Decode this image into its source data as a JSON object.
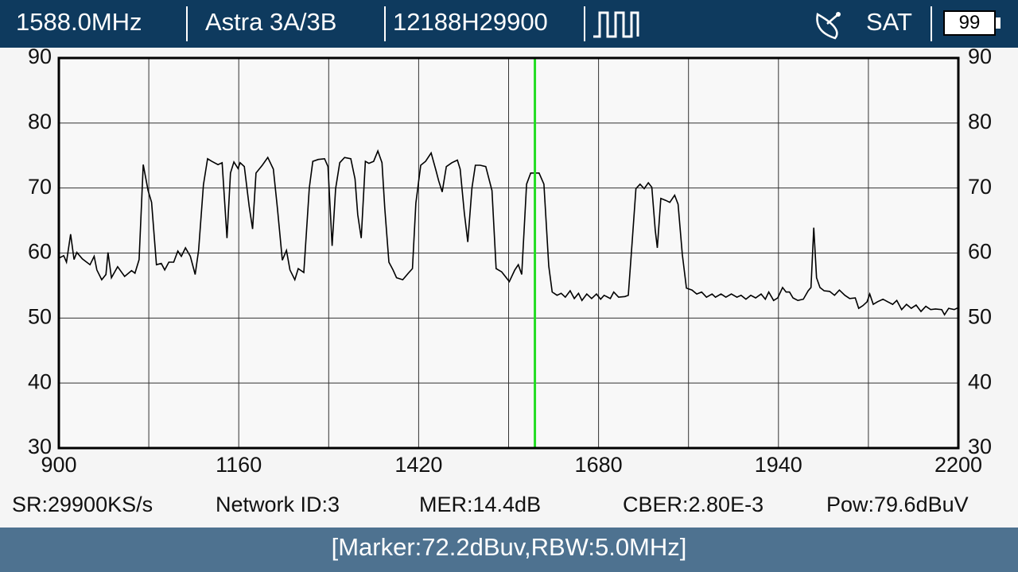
{
  "header": {
    "frequency": "1588.0MHz",
    "satellite": "Astra 3A/3B",
    "transponder": "12188H29900",
    "mode": "SAT",
    "battery": "99"
  },
  "status": [
    "SR:29900KS/s",
    "Network ID:3",
    "MER:14.4dB",
    "CBER:2.80E-3",
    "Pow:79.6dBuV"
  ],
  "footer": "[Marker:72.2dBuv,RBW:5.0MHz]",
  "chart_data": {
    "type": "line",
    "x": [
      900,
      907,
      911,
      917,
      922,
      926,
      934,
      945,
      951,
      955,
      962,
      968,
      971,
      976,
      985,
      995,
      1005,
      1010,
      1016,
      1022,
      1029,
      1034,
      1041,
      1048,
      1053,
      1059,
      1066,
      1072,
      1077,
      1083,
      1090,
      1097,
      1102,
      1109,
      1115,
      1121,
      1130,
      1136,
      1143,
      1148,
      1153,
      1159,
      1162,
      1168,
      1175,
      1180,
      1185,
      1194,
      1202,
      1210,
      1216,
      1223,
      1229,
      1234,
      1241,
      1246,
      1254,
      1262,
      1267,
      1275,
      1284,
      1289,
      1295,
      1300,
      1306,
      1313,
      1322,
      1328,
      1332,
      1337,
      1343,
      1348,
      1355,
      1361,
      1367,
      1371,
      1377,
      1383,
      1388,
      1397,
      1405,
      1411,
      1416,
      1423,
      1430,
      1438,
      1445,
      1449,
      1454,
      1460,
      1468,
      1476,
      1480,
      1486,
      1491,
      1497,
      1502,
      1509,
      1517,
      1526,
      1532,
      1540,
      1551,
      1559,
      1564,
      1569,
      1576,
      1582,
      1594,
      1601,
      1608,
      1613,
      1620,
      1626,
      1632,
      1639,
      1645,
      1651,
      1656,
      1663,
      1670,
      1677,
      1683,
      1688,
      1697,
      1702,
      1709,
      1718,
      1723,
      1729,
      1734,
      1740,
      1746,
      1752,
      1757,
      1762,
      1765,
      1770,
      1777,
      1783,
      1790,
      1795,
      1801,
      1807,
      1815,
      1822,
      1829,
      1836,
      1844,
      1849,
      1857,
      1864,
      1872,
      1880,
      1886,
      1893,
      1900,
      1907,
      1915,
      1921,
      1926,
      1933,
      1939,
      1946,
      1951,
      1956,
      1961,
      1968,
      1976,
      1983,
      1987,
      1991,
      1995,
      2000,
      2006,
      2014,
      2021,
      2028,
      2036,
      2043,
      2051,
      2056,
      2062,
      2068,
      2072,
      2077,
      2083,
      2091,
      2098,
      2105,
      2111,
      2118,
      2125,
      2132,
      2139,
      2146,
      2153,
      2160,
      2167,
      2176,
      2180,
      2186,
      2194,
      2200
    ],
    "values": [
      59.2,
      59.6,
      58.6,
      62.9,
      59.0,
      60.1,
      59.1,
      58.2,
      59.5,
      57.4,
      55.9,
      56.7,
      60.1,
      56.2,
      57.9,
      56.4,
      57.3,
      56.9,
      59.0,
      73.6,
      69.6,
      67.8,
      58.2,
      58.4,
      57.4,
      58.6,
      58.6,
      60.3,
      59.5,
      60.8,
      59.5,
      56.7,
      60.4,
      70.5,
      74.5,
      74.1,
      73.6,
      73.9,
      62.3,
      72.3,
      74.0,
      73.0,
      73.9,
      73.3,
      67.2,
      63.7,
      72.3,
      73.5,
      74.7,
      72.9,
      66.8,
      58.9,
      60.4,
      57.4,
      55.9,
      57.6,
      57.0,
      70.0,
      74.1,
      74.4,
      74.5,
      73.3,
      61.1,
      69.9,
      73.9,
      74.7,
      74.5,
      71.4,
      65.9,
      62.3,
      74.1,
      73.8,
      74.1,
      75.7,
      73.9,
      66.9,
      58.6,
      57.4,
      56.2,
      55.9,
      56.9,
      57.6,
      67.7,
      73.5,
      74.1,
      75.4,
      72.7,
      71.1,
      69.4,
      73.3,
      73.9,
      74.3,
      72.9,
      66.2,
      61.7,
      70.0,
      73.5,
      73.5,
      73.3,
      69.6,
      57.6,
      57.1,
      55.6,
      57.4,
      58.2,
      56.7,
      70.6,
      72.3,
      72.3,
      70.6,
      58.0,
      54.0,
      53.5,
      53.8,
      53.2,
      54.2,
      53.0,
      53.8,
      52.7,
      53.7,
      53.0,
      53.7,
      52.9,
      53.5,
      53.0,
      54.0,
      53.2,
      53.3,
      53.5,
      62.3,
      69.9,
      70.6,
      69.9,
      70.8,
      70.1,
      63.5,
      60.8,
      68.4,
      68.1,
      67.8,
      68.9,
      67.5,
      59.8,
      54.6,
      54.3,
      53.7,
      54.0,
      53.2,
      53.7,
      53.2,
      53.7,
      53.2,
      53.7,
      53.2,
      53.5,
      52.9,
      53.5,
      53.1,
      53.7,
      52.9,
      54.0,
      52.7,
      53.1,
      54.7,
      54.0,
      54.0,
      53.1,
      52.7,
      52.9,
      54.2,
      54.7,
      63.9,
      56.2,
      54.7,
      54.2,
      54.1,
      53.5,
      54.3,
      53.5,
      53.0,
      53.1,
      51.5,
      51.9,
      52.5,
      53.7,
      52.1,
      52.5,
      52.9,
      52.5,
      52.1,
      52.7,
      51.3,
      52.1,
      51.5,
      52.0,
      51.0,
      51.8,
      51.3,
      51.4,
      51.3,
      50.5,
      51.5,
      51.3,
      51.6
    ],
    "color": "#000000",
    "marker_x": 1588,
    "marker_color": "#22dd22",
    "xlim": [
      900,
      2200
    ],
    "xticks": [
      900,
      1160,
      1420,
      1680,
      1940,
      2200
    ],
    "ylim": [
      30,
      90
    ],
    "yticks": [
      30,
      40,
      50,
      60,
      70,
      80,
      90
    ],
    "grid": true
  }
}
